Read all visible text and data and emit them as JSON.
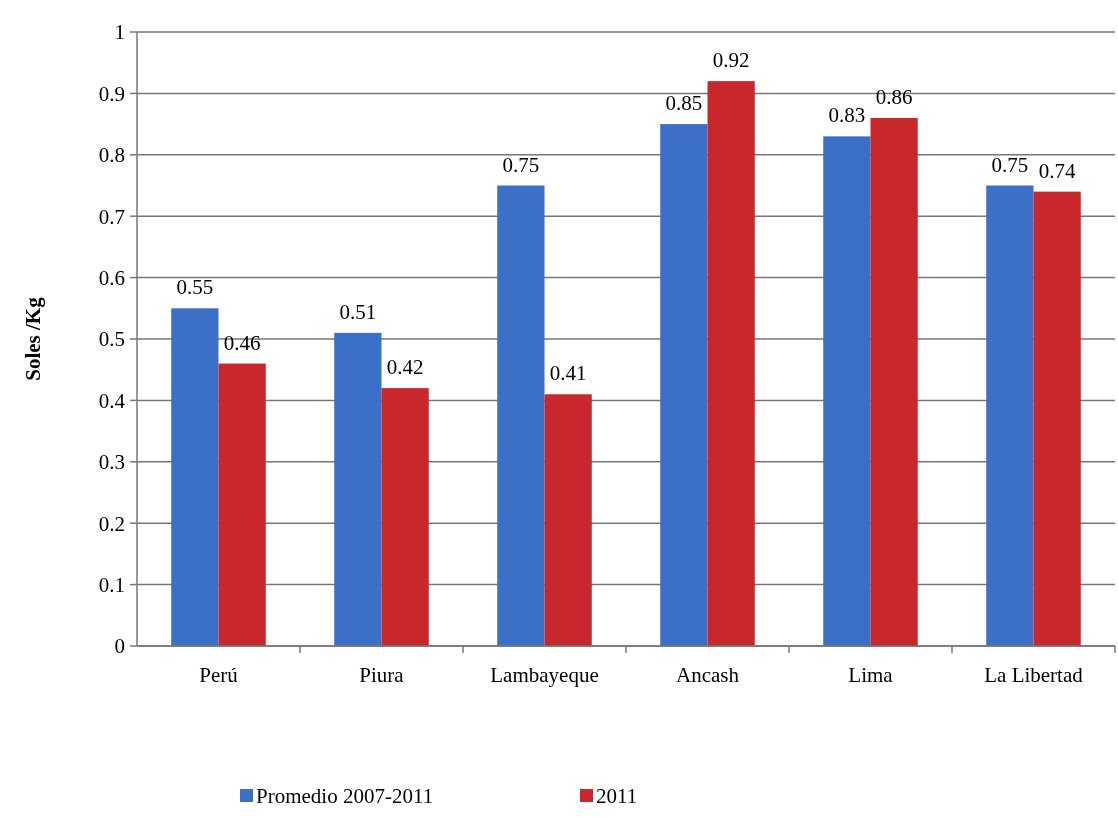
{
  "chart_data": {
    "type": "bar",
    "ylabel": "Soles /Kg",
    "categories": [
      "Perú",
      "Piura",
      "Lambayeque",
      "Ancash",
      "Lima",
      "La Libertad"
    ],
    "series": [
      {
        "name": "Promedio 2007-2011",
        "color": "#3c6fc8",
        "values": [
          0.55,
          0.51,
          0.75,
          0.85,
          0.83,
          0.75
        ]
      },
      {
        "name": "2011",
        "color": "#c8282c",
        "values": [
          0.46,
          0.42,
          0.41,
          0.92,
          0.86,
          0.74
        ]
      }
    ],
    "ylim": [
      0,
      1
    ],
    "yticks": [
      0,
      0.1,
      0.2,
      0.3,
      0.4,
      0.5,
      0.6,
      0.7,
      0.8,
      0.9,
      1
    ],
    "grid": "y",
    "data_labels": true,
    "legend": "bottom"
  }
}
